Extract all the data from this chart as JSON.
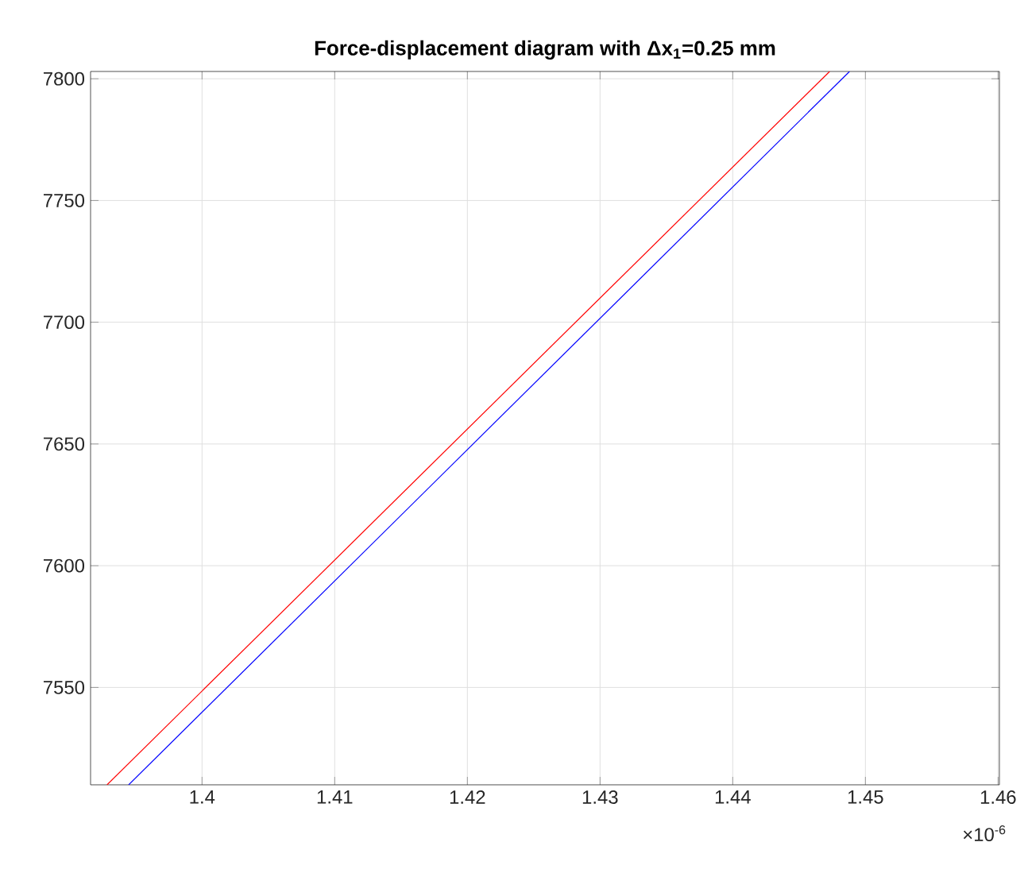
{
  "chart_data": {
    "type": "line",
    "title": "Force-displacement diagram with Δx$_{1}$=0.25 mm",
    "series": [
      {
        "color": "#ff0000",
        "x": [
          1.39284,
          1.4473
        ],
        "values": [
          7510,
          7803
        ]
      },
      {
        "color": "#0000ff",
        "x": [
          1.39447,
          1.4488
        ],
        "values": [
          7510,
          7803
        ]
      }
    ],
    "xlim": [
      1.3916,
      1.4601
    ],
    "ylim": [
      7510,
      7803
    ],
    "xticks": [
      1.4,
      1.41,
      1.42,
      1.43,
      1.44,
      1.45,
      1.46
    ],
    "yticks": [
      7550,
      7600,
      7650,
      7700,
      7750,
      7800
    ],
    "grid": true,
    "marker": "none",
    "line_style": "solid",
    "annotations": [
      "×10$^{-6}$"
    ]
  }
}
